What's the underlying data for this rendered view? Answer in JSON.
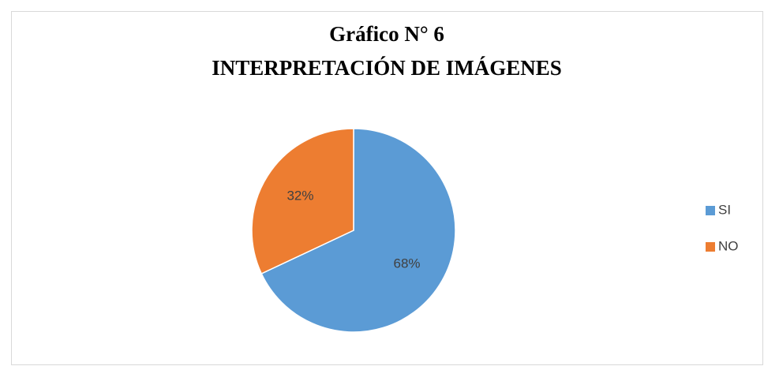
{
  "chart_data": {
    "type": "pie",
    "title": "Gráfico N° 6",
    "subtitle": "INTERPRETACIÓN DE IMÁGENES",
    "categories": [
      "SI",
      "NO"
    ],
    "values": [
      68,
      32
    ],
    "value_labels": [
      "68%",
      "32%"
    ],
    "colors": [
      "#5b9bd5",
      "#ed7d31"
    ],
    "legend": "right"
  }
}
